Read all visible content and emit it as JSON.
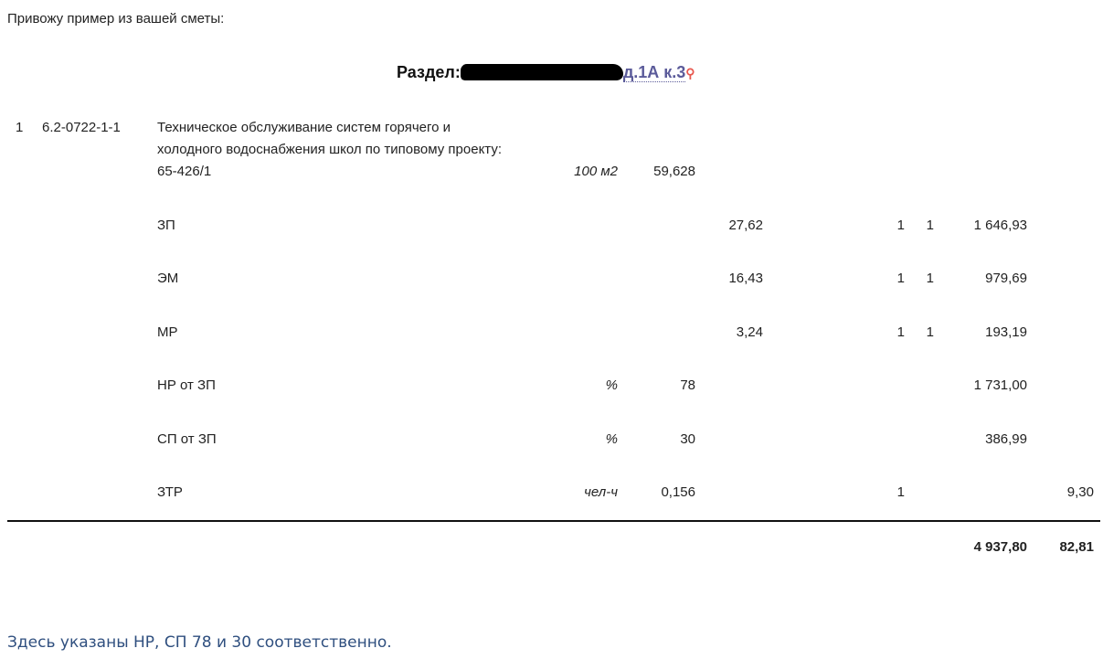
{
  "intro": "Привожу пример из вашей сметы:",
  "section": {
    "label": "Раздел:",
    "address_visible": "д.1А к.3",
    "pin_icon": "map-pin-icon"
  },
  "item": {
    "num": "1",
    "code": "6.2-0722-1-1",
    "name": "Техническое обслуживание систем горячего и холодного водоснабжения школ по типовому проекту: 65-426/1",
    "unit": "100 м2",
    "qty": "59,628"
  },
  "rows": [
    {
      "name": "ЗП",
      "unit": "",
      "qty": "",
      "price": "27,62",
      "k1": "1",
      "k2": "1",
      "total": "1 646,93",
      "extra": ""
    },
    {
      "name": "ЭМ",
      "unit": "",
      "qty": "",
      "price": "16,43",
      "k1": "1",
      "k2": "1",
      "total": "979,69",
      "extra": ""
    },
    {
      "name": "МР",
      "unit": "",
      "qty": "",
      "price": "3,24",
      "k1": "1",
      "k2": "1",
      "total": "193,19",
      "extra": ""
    },
    {
      "name": "НР от ЗП",
      "unit": "%",
      "qty": "78",
      "price": "",
      "k1": "",
      "k2": "",
      "total": "1 731,00",
      "extra": ""
    },
    {
      "name": "СП от ЗП",
      "unit": "%",
      "qty": "30",
      "price": "",
      "k1": "",
      "k2": "",
      "total": "386,99",
      "extra": ""
    },
    {
      "name": "ЗТР",
      "unit": "чел-ч",
      "qty": "0,156",
      "price": "",
      "k1": "1",
      "k2": "",
      "total": "",
      "extra": "9,30"
    }
  ],
  "totals": {
    "sum": "4 937,80",
    "labor": "82,81"
  },
  "footer": "Здесь указаны НР, СП 78 и 30 соответственно."
}
